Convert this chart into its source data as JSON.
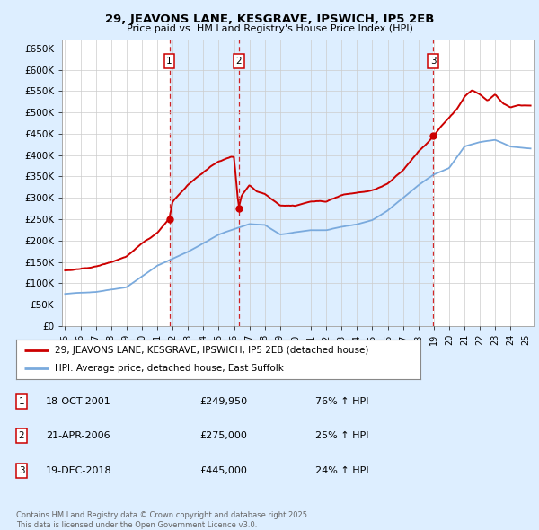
{
  "title": "29, JEAVONS LANE, KESGRAVE, IPSWICH, IP5 2EB",
  "subtitle": "Price paid vs. HM Land Registry's House Price Index (HPI)",
  "legend_line1": "29, JEAVONS LANE, KESGRAVE, IPSWICH, IP5 2EB (detached house)",
  "legend_line2": "HPI: Average price, detached house, East Suffolk",
  "footnote": "Contains HM Land Registry data © Crown copyright and database right 2025.\nThis data is licensed under the Open Government Licence v3.0.",
  "sales": [
    {
      "num": 1,
      "date": "18-OCT-2001",
      "price": 249950,
      "pct": "76%",
      "dir": "↑"
    },
    {
      "num": 2,
      "date": "21-APR-2006",
      "price": 275000,
      "pct": "25%",
      "dir": "↑"
    },
    {
      "num": 3,
      "date": "19-DEC-2018",
      "price": 445000,
      "pct": "24%",
      "dir": "↑"
    }
  ],
  "sale_dates_decimal": [
    2001.79,
    2006.3,
    2018.96
  ],
  "ylim": [
    0,
    670000
  ],
  "yticks": [
    0,
    50000,
    100000,
    150000,
    200000,
    250000,
    300000,
    350000,
    400000,
    450000,
    500000,
    550000,
    600000,
    650000
  ],
  "ytick_labels": [
    "£0",
    "£50K",
    "£100K",
    "£150K",
    "£200K",
    "£250K",
    "£300K",
    "£350K",
    "£400K",
    "£450K",
    "£500K",
    "£550K",
    "£600K",
    "£650K"
  ],
  "xlim_start": 1994.8,
  "xlim_end": 2025.5,
  "red_color": "#cc0000",
  "blue_color": "#7aaadd",
  "shade_color": "#ddeeff",
  "background_color": "#ddeeff",
  "plot_bg_color": "#ffffff",
  "grid_color": "#cccccc",
  "marker_box_color": "#cc0000",
  "dashed_line_color": "#cc0000"
}
